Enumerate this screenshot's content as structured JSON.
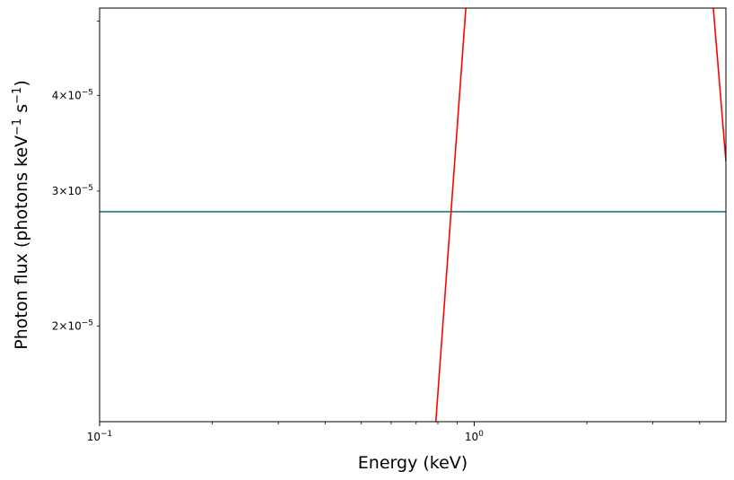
{
  "chart_data": {
    "type": "line",
    "title": "",
    "xlabel": "Energy (keV)",
    "ylabel_parts": {
      "text1": "Photon flux (photons keV",
      "exp1": "−1",
      "text2": " s",
      "exp2": "−1",
      "text3": ")"
    },
    "xscale": "log",
    "yscale": "log",
    "xlim": [
      0.1,
      4.7
    ],
    "ylim": [
      1.5e-05,
      5.2e-05
    ],
    "grid": false,
    "legend": "none",
    "x_major_ticks": [
      {
        "value": 0.1,
        "base": "10",
        "exp": "−1"
      },
      {
        "value": 1.0,
        "base": "10",
        "exp": "0"
      }
    ],
    "y_ticks": [
      {
        "value": 2e-05,
        "mant": "2",
        "base": "10",
        "exp": "−5"
      },
      {
        "value": 3e-05,
        "mant": "3",
        "base": "10",
        "exp": "−5"
      },
      {
        "value": 4e-05,
        "mant": "4",
        "base": "10",
        "exp": "−5"
      }
    ],
    "y_minor_extra_ticks": [
      5e-05
    ],
    "times_symbol": "×",
    "series": [
      {
        "color": "#1f7a8c",
        "x": [
          0.1,
          4.7
        ],
        "y": [
          2.82e-05,
          2.82e-05
        ]
      },
      {
        "color": "#ff0000",
        "x": [
          0.79,
          0.95
        ],
        "y": [
          1.5e-05,
          5.2e-05
        ]
      },
      {
        "color": "#ff0000",
        "x": [
          4.35,
          4.7
        ],
        "y": [
          5.2e-05,
          3.28e-05
        ]
      }
    ]
  }
}
